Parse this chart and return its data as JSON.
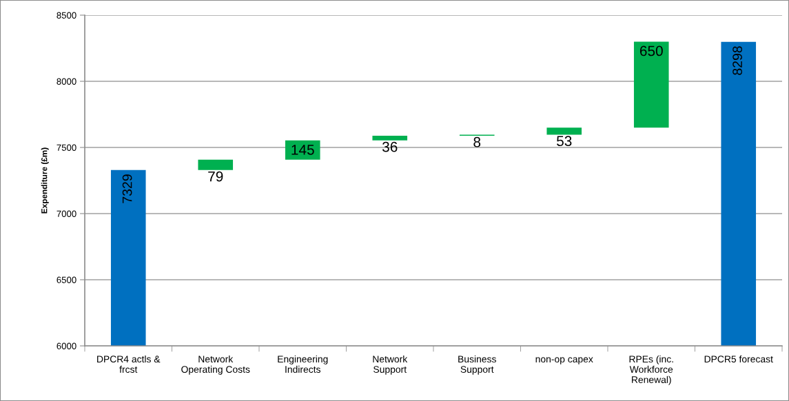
{
  "chart_data": {
    "type": "bar",
    "ylabel": "Expenditure (£m)",
    "categories": [
      "DPCR4 actls &\nfrcst",
      "Network\nOperating Costs",
      "Engineering\nIndirects",
      "Network\nSupport",
      "Business\nSupport",
      "non-op capex",
      "RPEs (inc.\nWorkforce\nRenewal)",
      "DPCR5 forecast"
    ],
    "values": [
      7329,
      79,
      145,
      36,
      8,
      53,
      650,
      8298
    ],
    "base": [
      null,
      7329,
      7408,
      7553,
      7589,
      7597,
      7650,
      null
    ],
    "colors": [
      "#0070c0",
      "#00b050",
      "#00b050",
      "#00b050",
      "#00b050",
      "#00b050",
      "#00b050",
      "#0070c0"
    ],
    "data_labels": true,
    "ylim": [
      6000,
      8500
    ],
    "yticks": [
      6000,
      6500,
      7000,
      7500,
      8000,
      8500
    ],
    "grid": "y"
  }
}
